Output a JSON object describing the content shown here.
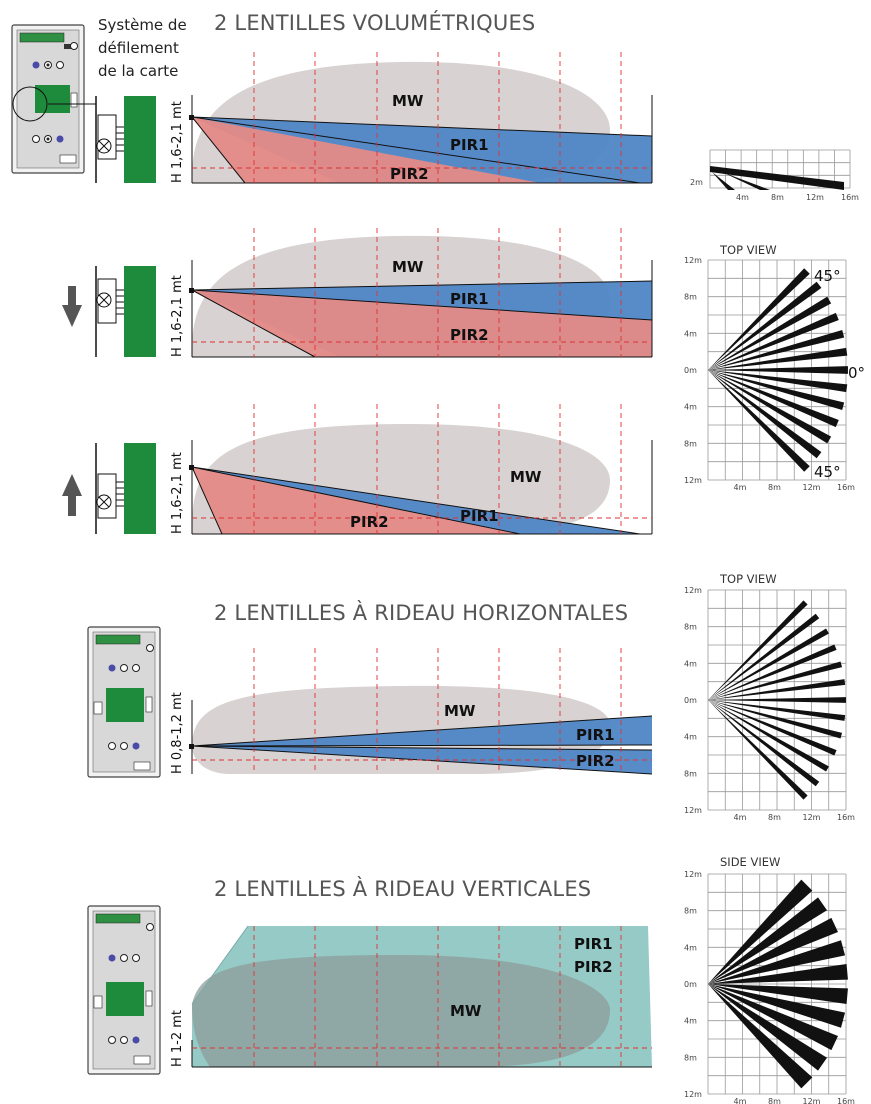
{
  "scroll_caption": [
    "Système de",
    "défilement",
    "de la carte"
  ],
  "titles": {
    "volumetric": "2 LENTILLES VOLUMÉTRIQUES",
    "horizontal": "2 LENTILLES À RIDEAU HORIZONTALES",
    "vertical": "2 LENTILLES À RIDEAU VERTICALES"
  },
  "labels": {
    "mw": "MW",
    "pir1": "PIR1",
    "pir2": "PIR2"
  },
  "heights": {
    "volumetric": "H 1,6-2,1 mt",
    "horizontal": "H 0,8-1,2 mt",
    "vertical": "H 1-2 mt"
  },
  "views": {
    "top": "TOP VIEW",
    "side": "SIDE VIEW"
  },
  "angles": {
    "top": "45°",
    "mid": "0°",
    "bottom": "45°"
  },
  "grid_ticks": {
    "x": [
      "4m",
      "8m",
      "12m",
      "16m"
    ],
    "y": [
      "12m",
      "8m",
      "4m",
      "0m",
      "4m",
      "8m",
      "12m"
    ],
    "small_y": "2m"
  },
  "colors": {
    "mw": "#d6d0d0",
    "pir1": "#4f86c6",
    "pir2": "#e58a87",
    "curtain": "#8fc7c3",
    "board": "#1e8a3c",
    "arrow": "#555555"
  }
}
